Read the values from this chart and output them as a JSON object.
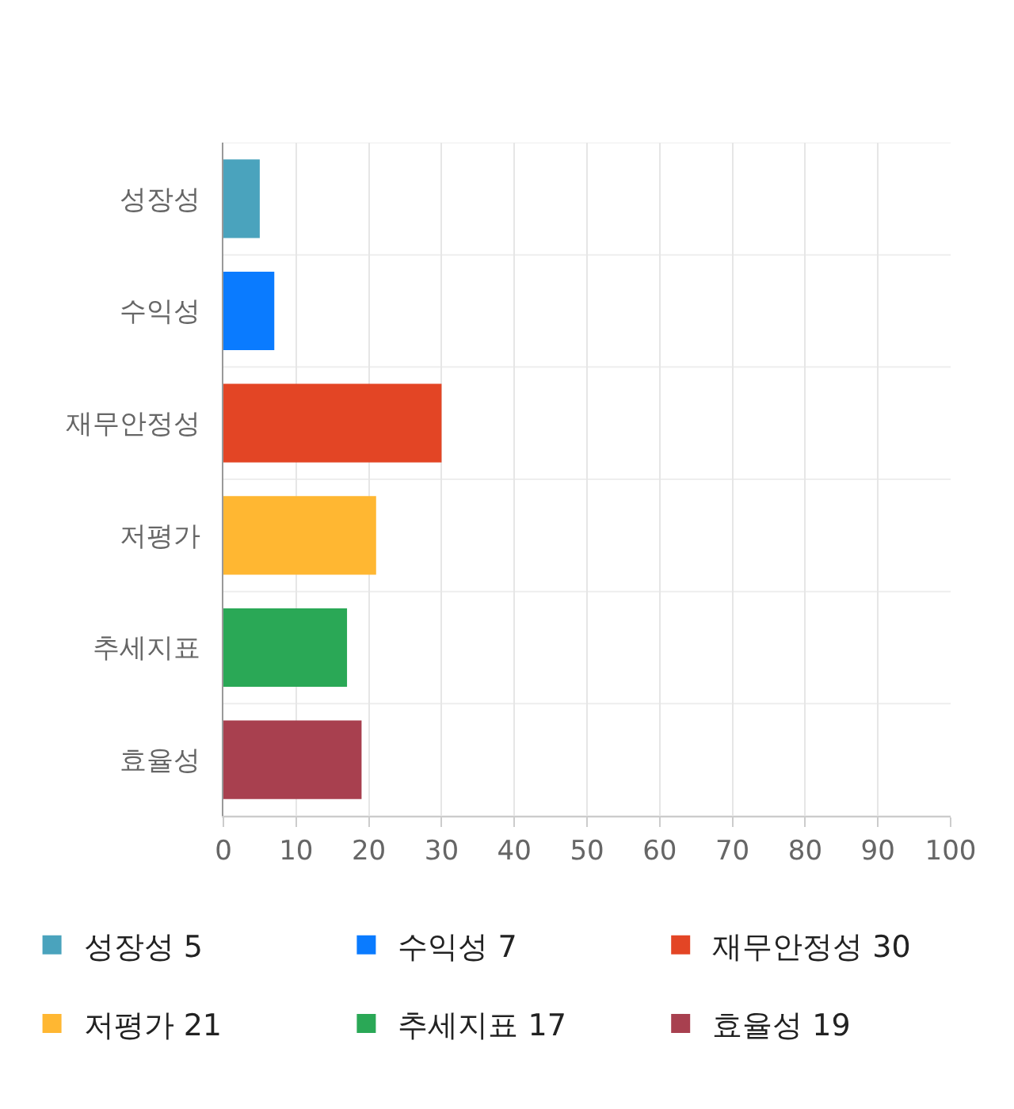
{
  "chart_data": {
    "type": "bar",
    "orientation": "horizontal",
    "categories": [
      "성장성",
      "수익성",
      "재무안정성",
      "저평가",
      "추세지표",
      "효율성"
    ],
    "series": [
      {
        "name": "성장성 5",
        "color": "#4aa3bd",
        "values": [
          5,
          null,
          null,
          null,
          null,
          null
        ]
      },
      {
        "name": "수익성 7",
        "color": "#0a7bff",
        "values": [
          null,
          7,
          null,
          null,
          null,
          null
        ]
      },
      {
        "name": "재무안정성 30",
        "color": "#e34525",
        "values": [
          null,
          null,
          30,
          null,
          null,
          null
        ]
      },
      {
        "name": "저평가 21",
        "color": "#ffb732",
        "values": [
          null,
          null,
          null,
          21,
          null,
          null
        ]
      },
      {
        "name": "추세지표 17",
        "color": "#2aa856",
        "values": [
          null,
          null,
          null,
          null,
          17,
          null
        ]
      },
      {
        "name": "효율성 19",
        "color": "#a8404f",
        "values": [
          null,
          null,
          null,
          null,
          null,
          19
        ]
      }
    ],
    "xlim": [
      0,
      100
    ],
    "xticks": [
      0,
      10,
      20,
      30,
      40,
      50,
      60,
      70,
      80,
      90,
      100
    ],
    "grid": true,
    "legend": "bottom"
  }
}
